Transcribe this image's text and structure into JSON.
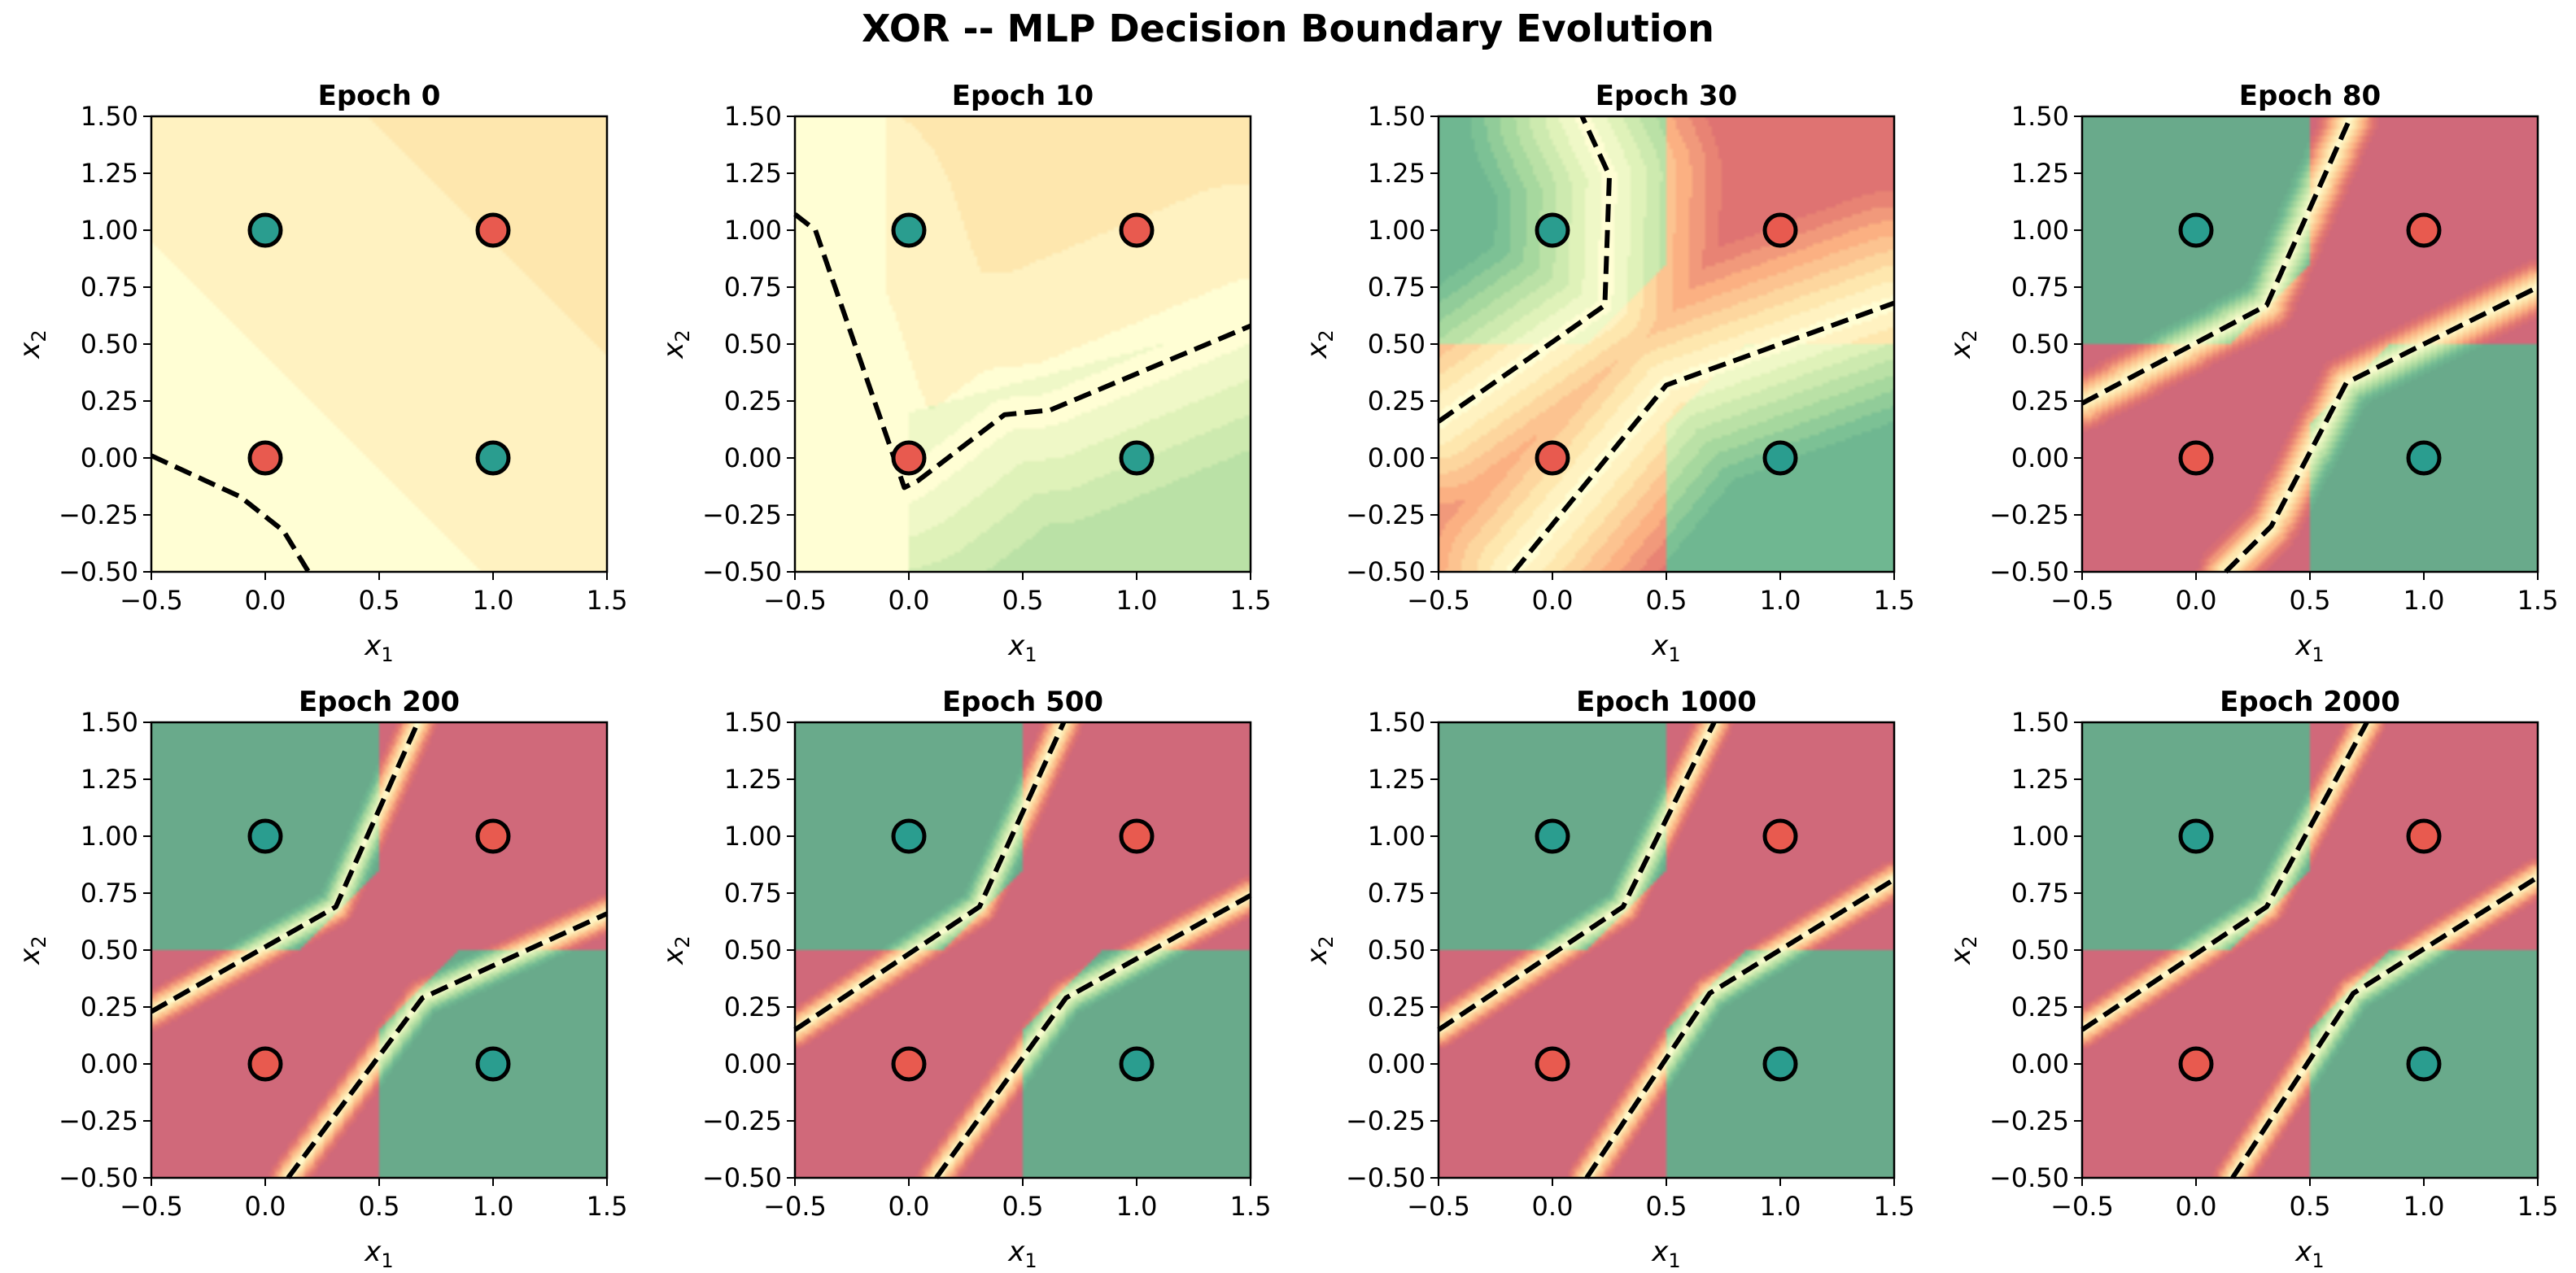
{
  "chart_data": {
    "type": "contour",
    "title": "XOR -- MLP Decision Boundary Evolution",
    "xlabel": "x1",
    "ylabel": "x2",
    "xlim": [
      -0.5,
      1.5
    ],
    "ylim": [
      -0.5,
      1.5
    ],
    "xticks": [
      "-0.5",
      "0.0",
      "0.5",
      "1.0",
      "1.5"
    ],
    "yticks": [
      "-0.50",
      "-0.25",
      "0.00",
      "0.25",
      "0.50",
      "0.75",
      "1.00",
      "1.25",
      "1.50"
    ],
    "colormap": "RdYlGn (red = class 1, green = class 0)",
    "colors": {
      "class0_point": "#2A9D8F",
      "class1_point": "#E85A4F",
      "green_region": "#69AA8B",
      "red_region": "#D0697A",
      "boundary": "#000000"
    },
    "points": [
      {
        "x": 0,
        "y": 0,
        "label": 1
      },
      {
        "x": 0,
        "y": 1,
        "label": 0
      },
      {
        "x": 1,
        "y": 0,
        "label": 0
      },
      {
        "x": 1,
        "y": 1,
        "label": 1
      }
    ],
    "panels": [
      {
        "title": "Epoch 0",
        "confidence": 0.12,
        "tilt": "orange-top-right",
        "boundaries": [
          [
            [
              -0.5,
              0.01
            ],
            [
              -0.11,
              -0.17
            ],
            [
              0.08,
              -0.32
            ],
            [
              0.19,
              -0.5
            ]
          ]
        ]
      },
      {
        "title": "Epoch 10",
        "confidence": 0.2,
        "tilt": "v-shape",
        "boundaries": [
          [
            [
              -0.5,
              1.07
            ],
            [
              -0.41,
              1.0
            ],
            [
              -0.02,
              -0.13
            ],
            [
              0.04,
              -0.1
            ],
            [
              0.42,
              0.19
            ],
            [
              0.62,
              0.21
            ],
            [
              1.5,
              0.58
            ]
          ]
        ]
      },
      {
        "title": "Epoch 30",
        "confidence": 0.45,
        "tilt": "xor",
        "boundaries": [
          [
            [
              -0.5,
              0.16
            ],
            [
              0.23,
              0.67
            ],
            [
              0.25,
              1.24
            ],
            [
              0.13,
              1.5
            ]
          ],
          [
            [
              -0.17,
              -0.5
            ],
            [
              0.5,
              0.32
            ],
            [
              1.5,
              0.68
            ]
          ]
        ]
      },
      {
        "title": "Epoch 80",
        "confidence": 0.85,
        "tilt": "xor",
        "boundaries": [
          [
            [
              -0.5,
              0.24
            ],
            [
              0.31,
              0.67
            ],
            [
              0.68,
              1.5
            ]
          ],
          [
            [
              0.13,
              -0.5
            ],
            [
              0.33,
              -0.3
            ],
            [
              0.66,
              0.33
            ],
            [
              1.5,
              0.75
            ]
          ]
        ]
      },
      {
        "title": "Epoch 200",
        "confidence": 1.0,
        "tilt": "xor",
        "boundaries": [
          [
            [
              -0.5,
              0.23
            ],
            [
              0.31,
              0.69
            ],
            [
              0.67,
              1.5
            ]
          ],
          [
            [
              0.1,
              -0.5
            ],
            [
              0.69,
              0.29
            ],
            [
              1.5,
              0.66
            ]
          ]
        ]
      },
      {
        "title": "Epoch 500",
        "confidence": 1.0,
        "tilt": "xor",
        "boundaries": [
          [
            [
              -0.5,
              0.15
            ],
            [
              0.31,
              0.69
            ],
            [
              0.68,
              1.5
            ]
          ],
          [
            [
              0.12,
              -0.5
            ],
            [
              0.69,
              0.29
            ],
            [
              1.5,
              0.74
            ]
          ]
        ]
      },
      {
        "title": "Epoch 1000",
        "confidence": 1.0,
        "tilt": "xor",
        "boundaries": [
          [
            [
              -0.5,
              0.15
            ],
            [
              0.31,
              0.69
            ],
            [
              0.71,
              1.5
            ]
          ],
          [
            [
              0.15,
              -0.5
            ],
            [
              0.69,
              0.31
            ],
            [
              1.5,
              0.81
            ]
          ]
        ]
      },
      {
        "title": "Epoch 2000",
        "confidence": 1.0,
        "tilt": "xor",
        "boundaries": [
          [
            [
              -0.5,
              0.15
            ],
            [
              0.31,
              0.69
            ],
            [
              0.75,
              1.5
            ]
          ],
          [
            [
              0.16,
              -0.5
            ],
            [
              0.69,
              0.31
            ],
            [
              1.5,
              0.82
            ]
          ]
        ]
      }
    ]
  }
}
